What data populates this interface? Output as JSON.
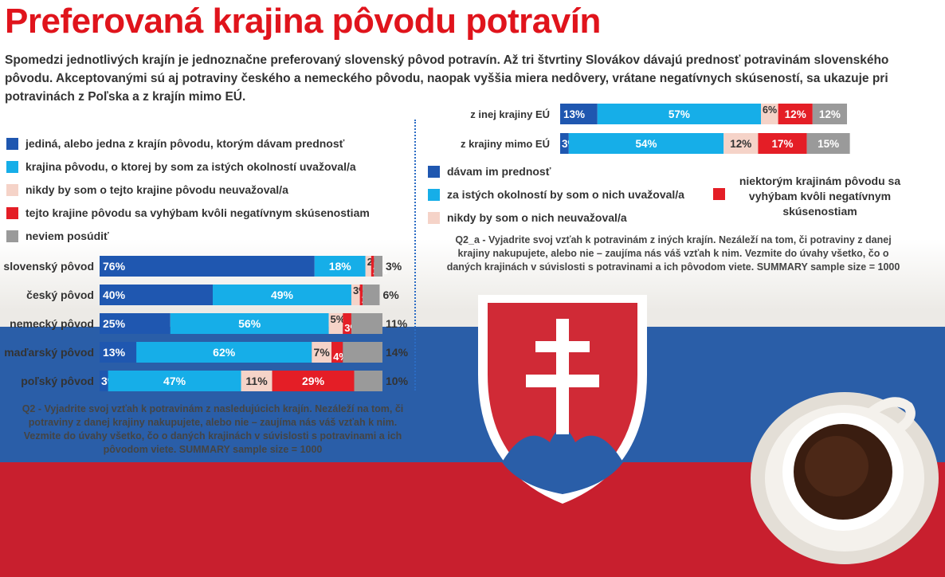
{
  "title": "Preferovaná krajina pôvodu potravín",
  "intro": "Spomedzi jednotlivých krajín je jednoznačne preferovaný slovenský pôvod potravín. Až tri štvrtiny Slovákov dávajú prednosť potravinám slovenského pôvodu. Akceptovanými sú aj potraviny českého a nemeckého pôvodu, naopak vyššia miera nedôvery, vrátane negatívnych skúseností, sa ukazuje pri potravinách z Poľska a z krajín mimo EÚ.",
  "left_legend": [
    {
      "label": "jediná, alebo jedna z krajín pôvodu, ktorým dávam prednosť",
      "color": "#1f57b0"
    },
    {
      "label": "krajina pôvodu, o ktorej by som za istých okolností uvažoval/a",
      "color": "#16aee8"
    },
    {
      "label": "nikdy by som o tejto krajine pôvodu neuvažoval/a",
      "color": "#f5d3c8"
    },
    {
      "label": "tejto krajine pôvodu sa vyhýbam kvôli negatívnym skúsenostiam",
      "color": "#e41e26"
    },
    {
      "label": "neviem posúdiť",
      "color": "#9a9a9a"
    }
  ],
  "right_legend": [
    {
      "label": "dávam im prednosť",
      "color": "#1f57b0"
    },
    {
      "label": "za istých okolností by som o nich uvažoval/a",
      "color": "#16aee8"
    },
    {
      "label": "nikdy by som o nich neuvažoval/a",
      "color": "#f5d3c8"
    },
    {
      "label": "niektorým krajinám pôvodu sa vyhýbam kvôli negatívnym skúsenostiam",
      "color": "#e41e26"
    }
  ],
  "q2_note": "Q2 - Vyjadrite svoj vzťah k potravinám z nasledujúcich krajín. Nezáleží na tom, či potraviny z danej krajiny nakupujete, alebo nie – zaujíma nás váš vzťah k nim. Vezmite do úvahy všetko, čo o daných krajinách v súvislosti s potravinami a ich pôvodom viete. SUMMARY sample size = 1000",
  "q2a_note": "Q2_a - Vyjadrite svoj vzťah k potravinám z iných krajín. Nezáleží na tom, či potraviny z danej krajiny nakupujete, alebo nie – zaujíma nás váš vzťah k nim. Vezmite do úvahy všetko, čo o daných krajinách v súvislosti s potravinami a ich pôvodom viete. SUMMARY sample size = 1000",
  "chart_data": [
    {
      "type": "bar",
      "stacked": true,
      "orientation": "horizontal",
      "categories": [
        "slovenský pôvod",
        "český pôvod",
        "nemecký pôvod",
        "maďarský pôvod",
        "poľský pôvod"
      ],
      "series": [
        {
          "name": "jediná, alebo jedna z krajín pôvodu, ktorým dávam prednosť",
          "values": [
            76,
            40,
            25,
            13,
            3
          ],
          "color": "#1f57b0"
        },
        {
          "name": "krajina pôvodu, o ktorej by som za istých okolností uvažoval/a",
          "values": [
            18,
            49,
            56,
            62,
            47
          ],
          "color": "#16aee8"
        },
        {
          "name": "nikdy by som o tejto krajine pôvodu neuvažoval/a",
          "values": [
            2,
            3,
            5,
            7,
            11
          ],
          "color": "#f5d3c8"
        },
        {
          "name": "tejto krajine pôvodu sa vyhýbam kvôli negatívnym skúsenostiam",
          "values": [
            1,
            1,
            3,
            4,
            29
          ],
          "color": "#e41e26"
        },
        {
          "name": "neviem posúdiť",
          "values": [
            3,
            6,
            11,
            14,
            10
          ],
          "color": "#9a9a9a"
        }
      ],
      "unit": "%"
    },
    {
      "type": "bar",
      "stacked": true,
      "orientation": "horizontal",
      "categories": [
        "z inej krajiny EÚ",
        "z krajiny mimo EÚ"
      ],
      "series": [
        {
          "name": "dávam im prednosť",
          "values": [
            13,
            3
          ],
          "color": "#1f57b0"
        },
        {
          "name": "za istých okolností by som o nich uvažoval/a",
          "values": [
            57,
            54
          ],
          "color": "#16aee8"
        },
        {
          "name": "nikdy by som o nich neuvažoval/a",
          "values": [
            6,
            12
          ],
          "color": "#f5d3c8"
        },
        {
          "name": "niektorým krajinám pôvodu sa vyhýbam kvôli negatívnym skúsenostiam",
          "values": [
            12,
            17
          ],
          "color": "#e41e26"
        },
        {
          "values": [
            12,
            15
          ],
          "color": "#9a9a9a"
        }
      ],
      "unit": "%"
    }
  ]
}
